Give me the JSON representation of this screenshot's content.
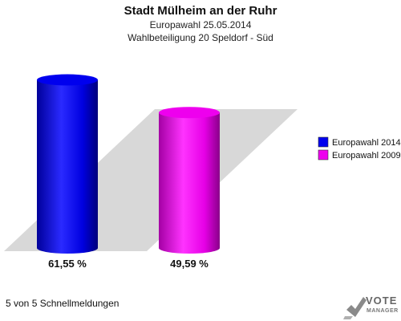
{
  "header": {
    "title": "Stadt Mülheim an der Ruhr",
    "subtitle1": "Europawahl 25.05.2014",
    "subtitle2": "Wahlbeteiligung 20 Speldorf - Süd"
  },
  "footer": {
    "text": "5 von 5 Schnellmeldungen"
  },
  "logo": {
    "line1": "VOTE",
    "line2": "MANAGER",
    "icon": "vote-manager-logo-icon"
  },
  "chart_data": {
    "type": "bar",
    "title": "Stadt Mülheim an der Ruhr",
    "subtitle": "Wahlbeteiligung 20 Speldorf - Süd",
    "categories": [
      "Europawahl 2014",
      "Europawahl 2009"
    ],
    "values": [
      61.55,
      49.59
    ],
    "value_labels": [
      "61,55 %",
      "49,59 %"
    ],
    "unit": "%",
    "ylim": [
      0,
      72
    ],
    "grid": false,
    "legend_position": "right",
    "series": [
      {
        "name": "Europawahl 2014",
        "value": 61.55,
        "color": "#0000ee",
        "label": "61,55 %"
      },
      {
        "name": "Europawahl 2009",
        "value": 49.59,
        "color": "#ee00ee",
        "label": "49,59 %"
      }
    ]
  }
}
